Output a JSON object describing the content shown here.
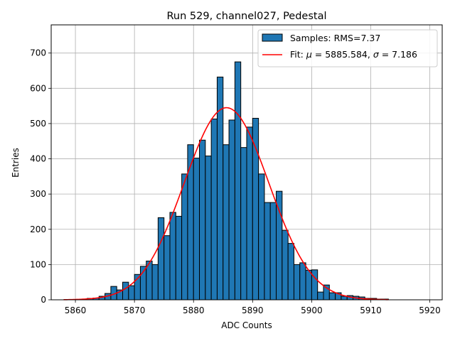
{
  "chart_data": {
    "type": "bar",
    "title": "Run 529, channel027, Pedestal",
    "xlabel": "ADC Counts",
    "ylabel": "Entries",
    "xlim": [
      5855.9,
      5922.1
    ],
    "ylim": [
      0,
      780
    ],
    "xticks": [
      5860,
      5870,
      5880,
      5890,
      5900,
      5910,
      5920
    ],
    "yticks": [
      0,
      100,
      200,
      300,
      400,
      500,
      600,
      700
    ],
    "grid": true,
    "legend_position": "top-right",
    "histogram": {
      "name": "Samples: RMS=7.37",
      "color": "#1f77b4",
      "edge_color": "#000000",
      "bin_start": 5858,
      "bin_width": 1,
      "values": [
        0,
        0,
        0,
        2,
        4,
        5,
        10,
        18,
        38,
        28,
        50,
        40,
        72,
        95,
        110,
        100,
        233,
        182,
        248,
        237,
        357,
        440,
        402,
        453,
        408,
        513,
        632,
        440,
        510,
        675,
        432,
        490,
        515,
        357,
        276,
        276,
        308,
        197,
        160,
        100,
        105,
        84,
        85,
        22,
        42,
        20,
        20,
        10,
        12,
        10,
        8,
        4,
        4,
        2,
        2,
        0
      ]
    },
    "fit": {
      "name": "Fit: μ = 5885.584, σ = 7.186",
      "name_parts": [
        "Fit: ",
        "μ",
        " = 5885.584, ",
        "σ",
        " = 7.186"
      ],
      "color": "#ff0000",
      "mu": 5885.584,
      "sigma": 7.186,
      "amplitude": 545,
      "x_range": [
        5858,
        5913
      ]
    }
  }
}
